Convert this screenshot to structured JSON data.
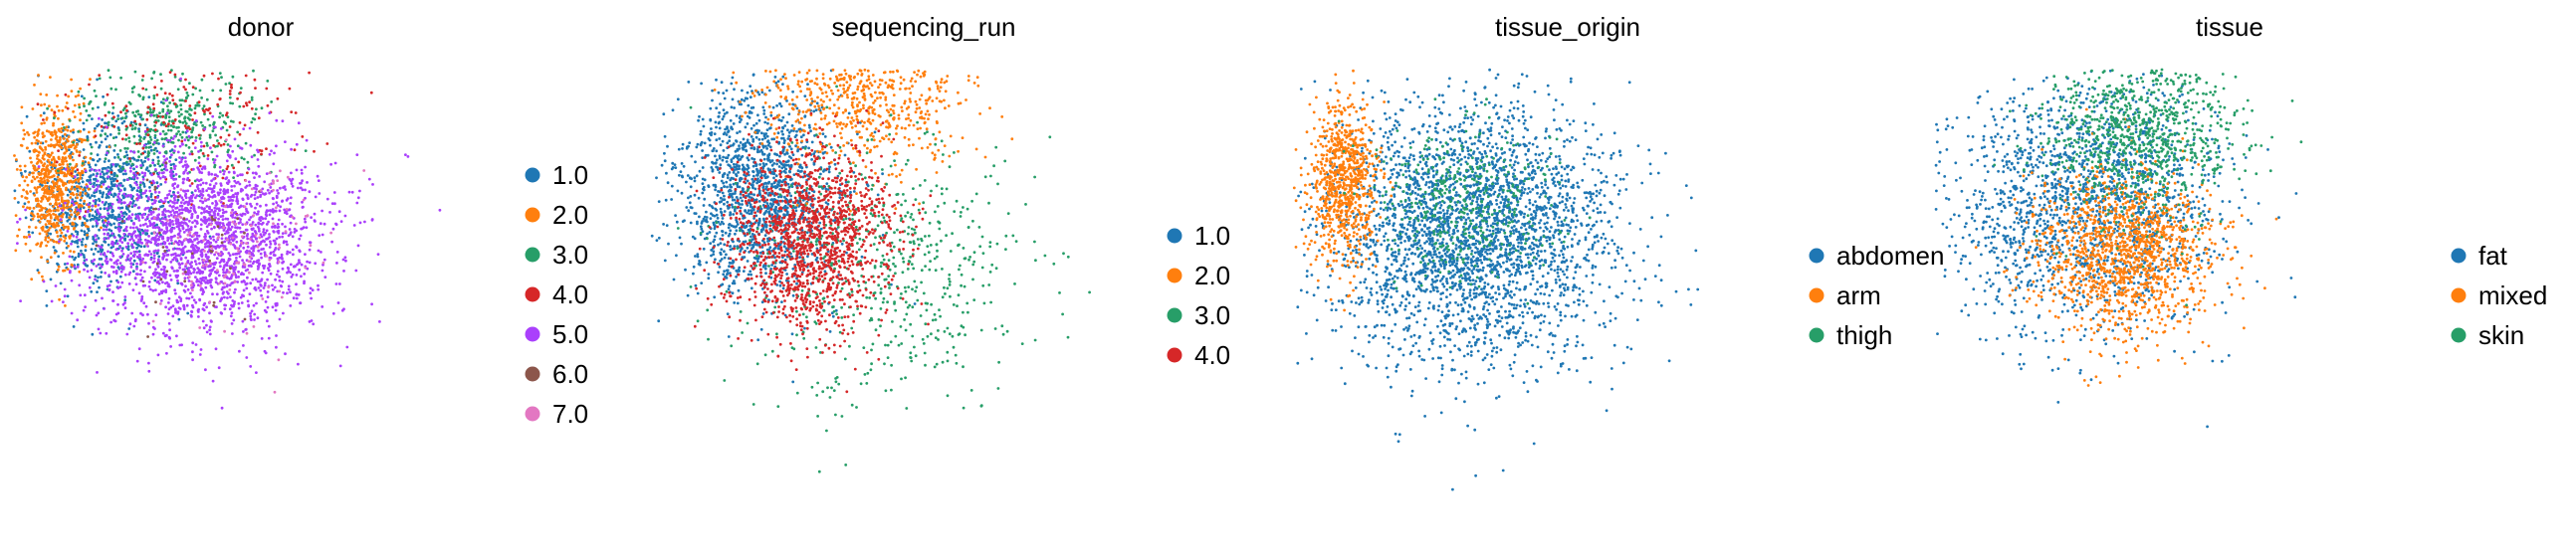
{
  "chart_data": [
    {
      "type": "scatter",
      "title": "donor",
      "legend": {
        "placement": "right",
        "entries": [
          {
            "label": "1.0",
            "color": "#1f77b4"
          },
          {
            "label": "2.0",
            "color": "#ff7f0e"
          },
          {
            "label": "3.0",
            "color": "#279e68"
          },
          {
            "label": "4.0",
            "color": "#d62728"
          },
          {
            "label": "5.0",
            "color": "#aa40fc"
          },
          {
            "label": "6.0",
            "color": "#8c564b"
          },
          {
            "label": "7.0",
            "color": "#e377c2"
          }
        ]
      },
      "axes": "hidden",
      "grid": false
    },
    {
      "type": "scatter",
      "title": "sequencing_run",
      "legend": {
        "placement": "right",
        "entries": [
          {
            "label": "1.0",
            "color": "#1f77b4"
          },
          {
            "label": "2.0",
            "color": "#ff7f0e"
          },
          {
            "label": "3.0",
            "color": "#279e68"
          },
          {
            "label": "4.0",
            "color": "#d62728"
          }
        ]
      },
      "axes": "hidden",
      "grid": false
    },
    {
      "type": "scatter",
      "title": "tissue_origin",
      "legend": {
        "placement": "right",
        "entries": [
          {
            "label": "abdomen",
            "color": "#1f77b4"
          },
          {
            "label": "arm",
            "color": "#ff7f0e"
          },
          {
            "label": "thigh",
            "color": "#279e68"
          }
        ]
      },
      "axes": "hidden",
      "grid": false
    },
    {
      "type": "scatter",
      "title": "tissue",
      "legend": {
        "placement": "right",
        "entries": [
          {
            "label": "fat",
            "color": "#1f77b4"
          },
          {
            "label": "mixed",
            "color": "#ff7f0e"
          },
          {
            "label": "skin",
            "color": "#279e68"
          }
        ]
      },
      "axes": "hidden",
      "grid": false
    }
  ]
}
